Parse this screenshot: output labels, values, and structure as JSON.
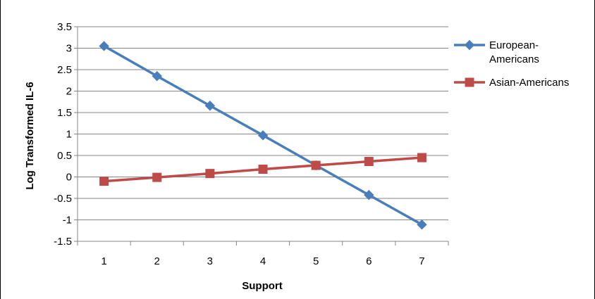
{
  "chart_data": {
    "type": "line",
    "title": "",
    "xlabel": "Support",
    "ylabel": "Log Transformed IL-6",
    "categories": [
      "1",
      "2",
      "3",
      "4",
      "5",
      "6",
      "7"
    ],
    "ylim": [
      -1.5,
      3.5
    ],
    "yticks": [
      "3.5",
      "3",
      "2.5",
      "2",
      "1.5",
      "1",
      "0.5",
      "0",
      "-0.5",
      "-1",
      "-1.5"
    ],
    "grid": true,
    "legend_position": "right",
    "series": [
      {
        "name_lines": [
          "European-",
          "Americans"
        ],
        "marker": "diamond",
        "color": "#4a7ebb",
        "values": [
          3.05,
          2.35,
          1.66,
          0.97,
          0.27,
          -0.42,
          -1.11
        ]
      },
      {
        "name_lines": [
          "Asian-Americans"
        ],
        "marker": "square",
        "color": "#be4b48",
        "values": [
          -0.1,
          -0.01,
          0.08,
          0.18,
          0.27,
          0.36,
          0.45
        ]
      }
    ]
  }
}
